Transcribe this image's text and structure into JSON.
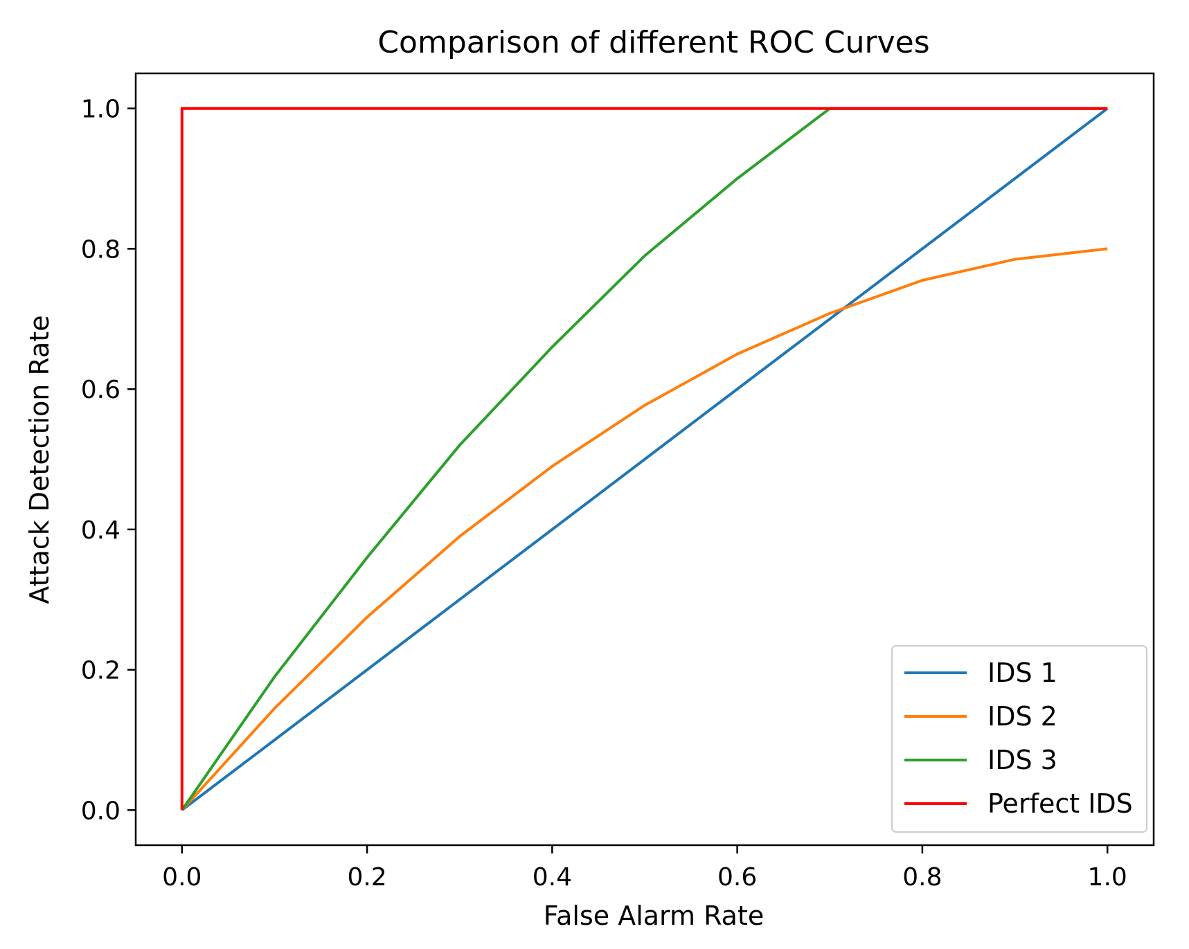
{
  "chart_data": {
    "type": "line",
    "title": "Comparison of different ROC Curves",
    "xlabel": "False Alarm Rate",
    "ylabel": "Attack Detection Rate",
    "xlim": [
      -0.05,
      1.05
    ],
    "ylim": [
      -0.05,
      1.05
    ],
    "xticks": [
      0.0,
      0.2,
      0.4,
      0.6,
      0.8,
      1.0
    ],
    "yticks": [
      0.0,
      0.2,
      0.4,
      0.6,
      0.8,
      1.0
    ],
    "xtick_labels": [
      "0.0",
      "0.2",
      "0.4",
      "0.6",
      "0.8",
      "1.0"
    ],
    "ytick_labels": [
      "0.0",
      "0.2",
      "0.4",
      "0.6",
      "0.8",
      "1.0"
    ],
    "grid": false,
    "legend_position": "bottom-right",
    "series": [
      {
        "name": "IDS 1",
        "color": "#1f77b4",
        "x": [
          0.0,
          0.1,
          0.2,
          0.3,
          0.4,
          0.5,
          0.6,
          0.7,
          0.8,
          0.9,
          1.0
        ],
        "y": [
          0.0,
          0.1,
          0.2,
          0.3,
          0.4,
          0.5,
          0.6,
          0.7,
          0.8,
          0.9,
          1.0
        ]
      },
      {
        "name": "IDS 2",
        "color": "#ff7f0e",
        "x": [
          0.0,
          0.1,
          0.2,
          0.3,
          0.4,
          0.5,
          0.6,
          0.7,
          0.8,
          0.9,
          1.0
        ],
        "y": [
          0.0,
          0.145,
          0.275,
          0.39,
          0.49,
          0.577,
          0.65,
          0.708,
          0.755,
          0.785,
          0.8
        ]
      },
      {
        "name": "IDS 3",
        "color": "#2ca02c",
        "x": [
          0.0,
          0.1,
          0.2,
          0.3,
          0.4,
          0.5,
          0.6,
          0.7,
          0.8,
          0.9,
          1.0
        ],
        "y": [
          0.0,
          0.19,
          0.36,
          0.52,
          0.66,
          0.79,
          0.9,
          1.0,
          1.0,
          1.0,
          1.0
        ]
      },
      {
        "name": "Perfect IDS",
        "color": "#ff0000",
        "x": [
          0.0,
          0.0,
          1.0
        ],
        "y": [
          0.0,
          1.0,
          1.0
        ]
      }
    ]
  }
}
